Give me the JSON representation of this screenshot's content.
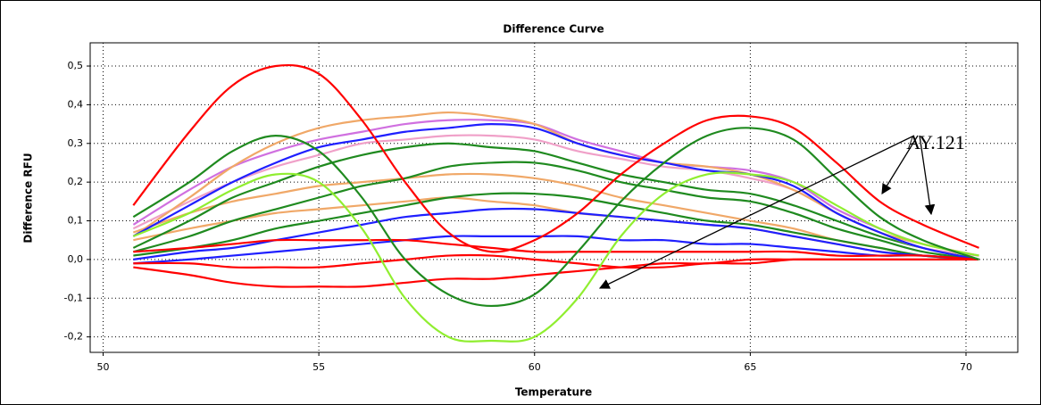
{
  "chart_data": {
    "type": "line",
    "title": "Difference Curve",
    "x_label": "Temperature",
    "y_label": "Difference RFU",
    "annotation": "AY.121",
    "grid": true,
    "xlim": [
      49.7,
      71.2
    ],
    "ylim": [
      -0.24,
      0.56
    ],
    "xticks": [
      50,
      55,
      60,
      65,
      70
    ],
    "yticks": [
      {
        "value": -0.2,
        "label": "-0,2"
      },
      {
        "value": -0.1,
        "label": "-0,1"
      },
      {
        "value": 0,
        "label": "0,0"
      },
      {
        "value": 0.1,
        "label": "0,1"
      },
      {
        "value": 0.2,
        "label": "0,2"
      },
      {
        "value": 0.3,
        "label": "0,3"
      },
      {
        "value": 0.4,
        "label": "0,4"
      },
      {
        "value": 0.5,
        "label": "0,5"
      }
    ],
    "x": [
      50.7,
      52,
      53,
      54,
      55,
      56,
      57,
      58,
      59,
      60,
      61,
      62,
      63,
      64,
      65,
      66,
      67,
      68,
      69,
      70.3
    ],
    "series": [
      {
        "color": "#f0a868",
        "values": [
          0.07,
          0.12,
          0.15,
          0.17,
          0.19,
          0.2,
          0.21,
          0.22,
          0.22,
          0.21,
          0.19,
          0.16,
          0.14,
          0.12,
          0.1,
          0.08,
          0.05,
          0.03,
          0.01,
          0.0
        ]
      },
      {
        "color": "#f0a868",
        "values": [
          0.05,
          0.08,
          0.1,
          0.12,
          0.13,
          0.14,
          0.15,
          0.16,
          0.15,
          0.14,
          0.12,
          0.11,
          0.1,
          0.09,
          0.08,
          0.06,
          0.04,
          0.02,
          0.01,
          0.0
        ]
      },
      {
        "color": "#1f8a1f",
        "values": [
          0.01,
          0.03,
          0.05,
          0.08,
          0.1,
          0.12,
          0.14,
          0.16,
          0.17,
          0.17,
          0.16,
          0.14,
          0.12,
          0.1,
          0.09,
          0.07,
          0.05,
          0.03,
          0.01,
          0.0
        ]
      },
      {
        "color": "#1f8a1f",
        "values": [
          0.02,
          0.06,
          0.1,
          0.13,
          0.16,
          0.19,
          0.21,
          0.24,
          0.25,
          0.25,
          0.23,
          0.2,
          0.18,
          0.16,
          0.15,
          0.12,
          0.08,
          0.05,
          0.02,
          0.0
        ]
      },
      {
        "color": "#1f8a1f",
        "values": [
          0.03,
          0.1,
          0.16,
          0.2,
          0.24,
          0.27,
          0.29,
          0.3,
          0.29,
          0.28,
          0.25,
          0.22,
          0.2,
          0.18,
          0.17,
          0.14,
          0.1,
          0.06,
          0.03,
          0.0
        ]
      },
      {
        "color": "#f0a0c8",
        "values": [
          0.08,
          0.15,
          0.2,
          0.24,
          0.27,
          0.3,
          0.31,
          0.32,
          0.32,
          0.31,
          0.28,
          0.26,
          0.24,
          0.23,
          0.21,
          0.18,
          0.12,
          0.07,
          0.03,
          0.01
        ]
      },
      {
        "color": "#d070e0",
        "values": [
          0.09,
          0.18,
          0.24,
          0.28,
          0.31,
          0.33,
          0.35,
          0.36,
          0.36,
          0.35,
          0.31,
          0.28,
          0.25,
          0.24,
          0.23,
          0.2,
          0.13,
          0.08,
          0.04,
          0.01
        ]
      },
      {
        "color": "#f0a868",
        "values": [
          0.06,
          0.16,
          0.24,
          0.3,
          0.34,
          0.36,
          0.37,
          0.38,
          0.37,
          0.35,
          0.3,
          0.27,
          0.25,
          0.24,
          0.22,
          0.18,
          0.12,
          0.07,
          0.04,
          0.01
        ]
      },
      {
        "color": "#1f1fff",
        "values": [
          0.06,
          0.14,
          0.2,
          0.25,
          0.29,
          0.31,
          0.33,
          0.34,
          0.35,
          0.34,
          0.3,
          0.27,
          0.25,
          0.23,
          0.22,
          0.19,
          0.12,
          0.07,
          0.03,
          0.0
        ]
      },
      {
        "color": "#1f1fff",
        "values": [
          0.0,
          0.02,
          0.03,
          0.05,
          0.07,
          0.09,
          0.11,
          0.12,
          0.13,
          0.13,
          0.12,
          0.11,
          0.1,
          0.09,
          0.08,
          0.06,
          0.04,
          0.02,
          0.01,
          0.0
        ]
      },
      {
        "color": "#1f1fff",
        "values": [
          -0.01,
          0.0,
          0.01,
          0.02,
          0.03,
          0.04,
          0.05,
          0.06,
          0.06,
          0.06,
          0.06,
          0.05,
          0.05,
          0.04,
          0.04,
          0.03,
          0.02,
          0.01,
          0.01,
          0.0
        ]
      },
      {
        "color": "#ff0000",
        "values": [
          0.02,
          0.03,
          0.04,
          0.05,
          0.05,
          0.05,
          0.05,
          0.04,
          0.03,
          0.02,
          0.02,
          0.02,
          0.02,
          0.02,
          0.02,
          0.02,
          0.01,
          0.01,
          0.01,
          0.0
        ]
      },
      {
        "color": "#ff0000",
        "values": [
          -0.01,
          -0.01,
          -0.02,
          -0.02,
          -0.02,
          -0.01,
          0.0,
          0.01,
          0.01,
          0.0,
          -0.01,
          -0.02,
          -0.02,
          -0.01,
          -0.01,
          0.0,
          0.0,
          0.0,
          0.0,
          0.0
        ]
      },
      {
        "color": "#ff0000",
        "values": [
          -0.02,
          -0.04,
          -0.06,
          -0.07,
          -0.07,
          -0.07,
          -0.06,
          -0.05,
          -0.05,
          -0.04,
          -0.03,
          -0.02,
          -0.01,
          -0.01,
          0.0,
          0.0,
          0.0,
          0.0,
          0.0,
          0.0
        ]
      },
      {
        "color": "#90ee30",
        "values": [
          0.06,
          0.12,
          0.18,
          0.22,
          0.2,
          0.08,
          -0.1,
          -0.2,
          -0.21,
          -0.2,
          -0.1,
          0.06,
          0.17,
          0.22,
          0.22,
          0.2,
          0.14,
          0.08,
          0.04,
          0.01
        ]
      },
      {
        "color": "#1f8a1f",
        "values": [
          0.11,
          0.2,
          0.28,
          0.32,
          0.28,
          0.16,
          0.0,
          -0.09,
          -0.12,
          -0.09,
          0.02,
          0.15,
          0.25,
          0.32,
          0.34,
          0.31,
          0.21,
          0.11,
          0.05,
          0.0
        ]
      },
      {
        "color": "#ff0000",
        "values": [
          0.14,
          0.33,
          0.45,
          0.5,
          0.48,
          0.36,
          0.2,
          0.07,
          0.02,
          0.05,
          0.12,
          0.22,
          0.3,
          0.36,
          0.37,
          0.34,
          0.25,
          0.15,
          0.09,
          0.03
        ]
      }
    ]
  }
}
